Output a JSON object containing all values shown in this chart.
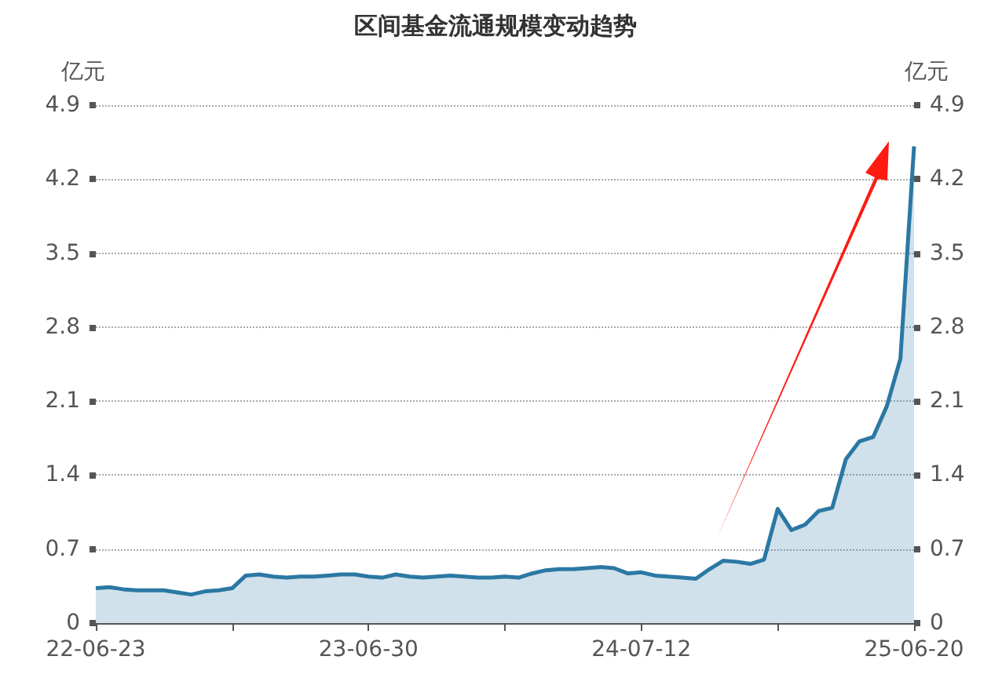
{
  "chart_data": {
    "type": "area",
    "title": "区间基金流通规模变动趋势",
    "ylabel": "亿元",
    "y2label": "亿元",
    "categories": [
      "22-06-23",
      null,
      null,
      null,
      null,
      null,
      null,
      null,
      null,
      null,
      null,
      null,
      null,
      null,
      null,
      null,
      null,
      null,
      null,
      null,
      "23-06-30",
      null,
      null,
      null,
      null,
      null,
      null,
      null,
      null,
      null,
      null,
      null,
      null,
      null,
      null,
      null,
      null,
      null,
      null,
      null,
      "24-07-12",
      null,
      null,
      null,
      null,
      null,
      null,
      null,
      null,
      null,
      null,
      null,
      null,
      null,
      null,
      null,
      null,
      null,
      null,
      null,
      "25-06-20"
    ],
    "values": [
      0.33,
      0.34,
      0.32,
      0.31,
      0.31,
      0.31,
      0.29,
      0.27,
      0.3,
      0.31,
      0.33,
      0.45,
      0.46,
      0.44,
      0.43,
      0.44,
      0.44,
      0.45,
      0.46,
      0.46,
      0.44,
      0.43,
      0.46,
      0.44,
      0.43,
      0.44,
      0.45,
      0.44,
      0.43,
      0.43,
      0.44,
      0.43,
      0.47,
      0.5,
      0.51,
      0.51,
      0.52,
      0.53,
      0.52,
      0.47,
      0.48,
      0.45,
      0.44,
      0.43,
      0.42,
      0.51,
      0.59,
      0.58,
      0.56,
      0.6,
      1.08,
      0.88,
      0.93,
      1.06,
      1.09,
      1.55,
      1.72,
      1.76,
      2.05,
      2.5,
      4.51
    ],
    "color": "#2b78a3",
    "marker": "none",
    "grid": "y",
    "ylim": [
      0,
      4.9
    ],
    "yticks": [
      0,
      0.7,
      1.4,
      2.1,
      2.8,
      3.5,
      4.2,
      4.9
    ],
    "y2lim": [
      0,
      4.9
    ],
    "y2ticks": [
      0,
      0.7,
      1.4,
      2.1,
      2.8,
      3.5,
      4.2,
      4.9
    ]
  }
}
